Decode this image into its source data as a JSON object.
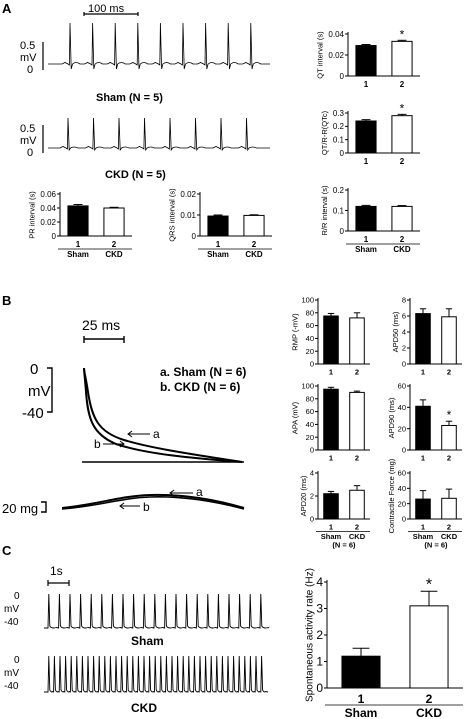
{
  "panels": {
    "A": {
      "letter": "A",
      "scalebar": "100 ms",
      "sham_label": "Sham (N = 5)",
      "ckd_label": "CKD (N = 5)",
      "trace_ticks": [
        "0.5",
        "mV",
        "0"
      ],
      "trace_ticks2": [
        "0.5",
        "mV",
        "0"
      ]
    },
    "B": {
      "letter": "B",
      "scalebar": "25 ms",
      "legend_a": "a. Sham (N = 6)",
      "legend_b": "b. CKD (N = 6)",
      "ap_ticks": [
        "0",
        "mV",
        "-40"
      ],
      "trace_a": "a",
      "trace_b": "b",
      "force_scale": "20 mg",
      "force_a": "a",
      "force_b": "b"
    },
    "C": {
      "letter": "C",
      "scalebar": "1s",
      "sham_label": "Sham",
      "ckd_label": "CKD",
      "ticks_sham": [
        "0",
        "mV",
        "-40"
      ],
      "ticks_ckd": [
        "0",
        "mV",
        "-40"
      ]
    }
  },
  "colors": {
    "bar1": "#000000",
    "bar2": "#ffffff",
    "stroke": "#000000"
  },
  "chart_data": [
    {
      "id": "qt",
      "type": "bar",
      "categories": [
        "1",
        "2"
      ],
      "values": [
        0.029,
        0.033
      ],
      "errors": [
        0.001,
        0.001
      ],
      "ylabel": "QT interval (s)",
      "yticks": [
        "0",
        "0.02",
        "0.04"
      ],
      "ylim": [
        0,
        0.04
      ],
      "sig": [
        "",
        "*"
      ],
      "group_labels": [
        "",
        ""
      ]
    },
    {
      "id": "qtc",
      "type": "bar",
      "categories": [
        "1",
        "2"
      ],
      "values": [
        0.24,
        0.28
      ],
      "errors": [
        0.01,
        0.01
      ],
      "ylabel": "QT/R-R(QTc)",
      "yticks": [
        "0",
        "0.1",
        "0.2",
        "0.3"
      ],
      "ylim": [
        0,
        0.3
      ],
      "sig": [
        "",
        "*"
      ],
      "group_labels": [
        "",
        ""
      ]
    },
    {
      "id": "rr",
      "type": "bar",
      "categories": [
        "1",
        "2"
      ],
      "values": [
        0.12,
        0.12
      ],
      "errors": [
        0.005,
        0.004
      ],
      "ylabel": "R/R interval (s)",
      "yticks": [
        "0",
        "0.1",
        "0.2"
      ],
      "ylim": [
        0,
        0.2
      ],
      "sig": [
        "",
        ""
      ],
      "group_labels": [
        "Sham",
        "CKD"
      ]
    },
    {
      "id": "pr",
      "type": "bar",
      "categories": [
        "1",
        "2"
      ],
      "values": [
        0.043,
        0.04
      ],
      "errors": [
        0.002,
        0.001
      ],
      "ylabel": "PR interval (s)",
      "yticks": [
        "0",
        "0.02",
        "0.04",
        "0.06"
      ],
      "ylim": [
        0,
        0.06
      ],
      "sig": [
        "",
        ""
      ],
      "group_labels": [
        "Sham",
        "CKD"
      ]
    },
    {
      "id": "qrs",
      "type": "bar",
      "categories": [
        "1",
        "2"
      ],
      "values": [
        0.0095,
        0.0098
      ],
      "errors": [
        0.0005,
        0.0003
      ],
      "ylabel": "QRS interval (s)",
      "yticks": [
        "0",
        "0.01",
        "0.02"
      ],
      "ylim": [
        0,
        0.02
      ],
      "sig": [
        "",
        ""
      ],
      "group_labels": [
        "Sham",
        "CKD"
      ]
    },
    {
      "id": "rmp",
      "type": "bar",
      "categories": [
        "1",
        "2"
      ],
      "values": [
        75,
        72
      ],
      "errors": [
        4,
        8
      ],
      "ylabel": "RMP (-mV)",
      "yticks": [
        "0",
        "20",
        "40",
        "60",
        "80",
        "100"
      ],
      "ylim": [
        0,
        100
      ],
      "sig": [
        "",
        ""
      ],
      "group_labels": [
        "",
        ""
      ]
    },
    {
      "id": "apd50",
      "type": "bar",
      "categories": [
        "1",
        "2"
      ],
      "values": [
        6.3,
        5.9
      ],
      "errors": [
        0.6,
        1.0
      ],
      "ylabel": "APD50 (ms)",
      "yticks": [
        "0",
        "2",
        "4",
        "6",
        "8"
      ],
      "ylim": [
        0,
        8
      ],
      "sig": [
        "",
        ""
      ],
      "group_labels": [
        "",
        ""
      ]
    },
    {
      "id": "apa",
      "type": "bar",
      "categories": [
        "1",
        "2"
      ],
      "values": [
        95,
        90
      ],
      "errors": [
        3,
        2
      ],
      "ylabel": "APA (mV)",
      "yticks": [
        "0",
        "20",
        "40",
        "60",
        "80",
        "100"
      ],
      "ylim": [
        0,
        100
      ],
      "sig": [
        "",
        ""
      ],
      "group_labels": [
        "",
        ""
      ]
    },
    {
      "id": "apd90",
      "type": "bar",
      "categories": [
        "1",
        "2"
      ],
      "values": [
        41,
        23
      ],
      "errors": [
        6,
        4
      ],
      "ylabel": "APD90 (ms)",
      "yticks": [
        "0",
        "20",
        "40",
        "60"
      ],
      "ylim": [
        0,
        60
      ],
      "sig": [
        "",
        "*"
      ],
      "group_labels": [
        "",
        ""
      ]
    },
    {
      "id": "apd20",
      "type": "bar",
      "categories": [
        "1",
        "2"
      ],
      "values": [
        2.2,
        2.5
      ],
      "errors": [
        0.2,
        0.4
      ],
      "ylabel": "APD20 (ms)",
      "yticks": [
        "0",
        "2",
        "4"
      ],
      "ylim": [
        0,
        4
      ],
      "sig": [
        "",
        ""
      ],
      "group_labels": [
        "Sham",
        "CKD"
      ],
      "n_label": "(N = 6)"
    },
    {
      "id": "force",
      "type": "bar",
      "categories": [
        "1",
        "2"
      ],
      "values": [
        26,
        27
      ],
      "errors": [
        11,
        12
      ],
      "ylabel": "Contractile Force (mg)",
      "yticks": [
        "0",
        "20",
        "40",
        "60"
      ],
      "ylim": [
        0,
        60
      ],
      "sig": [
        "",
        ""
      ],
      "group_labels": [
        "Sham",
        "CKD"
      ],
      "n_label": "(N = 6)"
    },
    {
      "id": "rate",
      "type": "bar",
      "categories": [
        "1",
        "2"
      ],
      "values": [
        1.2,
        3.1
      ],
      "errors": [
        0.3,
        0.55
      ],
      "ylabel": "Spontaneous activity rate (Hz)",
      "yticks": [
        "0",
        "1",
        "2",
        "3",
        "4"
      ],
      "ylim": [
        0,
        4
      ],
      "sig": [
        "",
        "*"
      ],
      "group_labels": [
        "Sham",
        "CKD"
      ]
    }
  ]
}
